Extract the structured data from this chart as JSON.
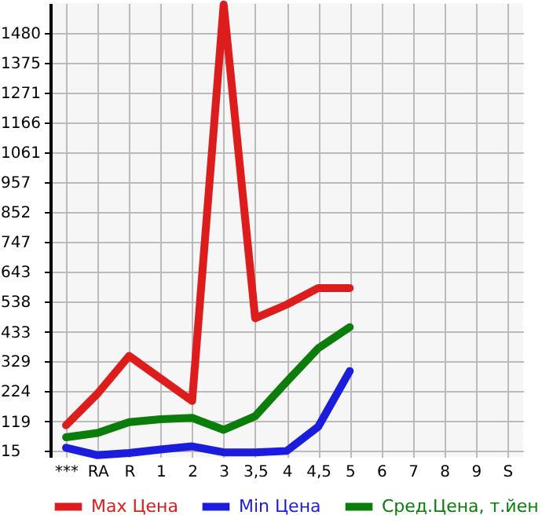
{
  "chart_data": {
    "type": "line",
    "categories": [
      "***",
      "RA",
      "R",
      "1",
      "2",
      "3",
      "3,5",
      "4",
      "4,5",
      "5",
      "6",
      "7",
      "8",
      "9",
      "S"
    ],
    "ylim": [
      -6,
      1585
    ],
    "yticks": [
      15,
      119,
      224,
      329,
      433,
      538,
      643,
      747,
      852,
      957,
      1061,
      1166,
      1271,
      1375,
      1480
    ],
    "grid": true,
    "legend": "bottom",
    "series": [
      {
        "name": "Max Цена",
        "color": "#dd1c1c",
        "values": [
          105,
          216,
          348,
          269,
          190,
          1580,
          480,
          528,
          586,
          586,
          null,
          null,
          null,
          null,
          null
        ]
      },
      {
        "name": "Min Цена",
        "color": "#1c1cdd",
        "values": [
          26,
          0,
          8,
          20,
          31,
          10,
          10,
          15,
          100,
          295,
          null,
          null,
          null,
          null,
          null
        ]
      },
      {
        "name": "Сред.Цена, т.йен",
        "color": "#0a7d0a",
        "values": [
          63,
          78,
          116,
          126,
          131,
          89,
          137,
          258,
          375,
          449,
          null,
          null,
          null,
          null,
          null
        ]
      }
    ]
  }
}
